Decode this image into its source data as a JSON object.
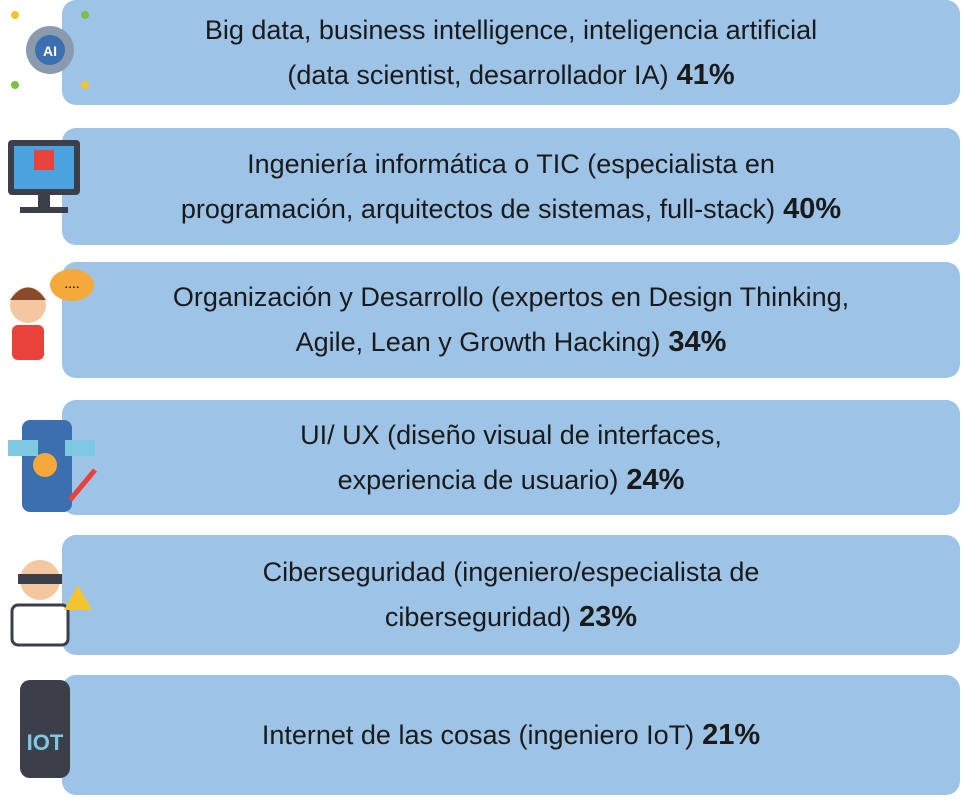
{
  "items": [
    {
      "lines": [
        "Big data, business intelligence, inteligencia artificial",
        "(data scientist, desarrollador IA)"
      ],
      "percent": "41%"
    },
    {
      "lines": [
        "Ingeniería informática o TIC (especialista en",
        "programación, arquitectos de sistemas, full-stack)"
      ],
      "percent": "40%"
    },
    {
      "lines": [
        "Organización y Desarrollo (expertos en Design Thinking,",
        "Agile, Lean y Growth Hacking)"
      ],
      "percent": "34%"
    },
    {
      "lines": [
        "UI/ UX (diseño visual de interfaces,",
        "experiencia de usuario)"
      ],
      "percent": "24%"
    },
    {
      "lines": [
        "Ciberseguridad (ingeniero/especialista de",
        "ciberseguridad)"
      ],
      "percent": "23%"
    },
    {
      "lines": [
        "Internet de las cosas (ingeniero IoT)"
      ],
      "percent": "21%"
    }
  ]
}
